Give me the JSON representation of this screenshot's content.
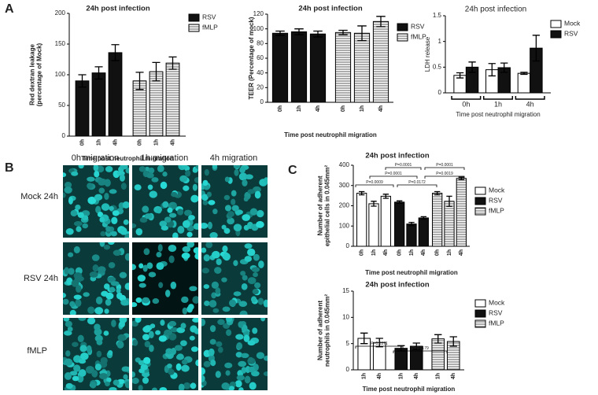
{
  "figure": {
    "panel_labels": [
      "A",
      "B",
      "C"
    ],
    "microscopy": {
      "columns": [
        "0h migration",
        "1h migration",
        "4h migration"
      ],
      "rows": [
        "Mock 24h",
        "RSV 24h",
        "fMLP"
      ]
    }
  },
  "chart_data": [
    {
      "type": "bar",
      "title": "24h post infection",
      "xlabel": "Time post neutrophil migration",
      "ylabel": [
        "Red dextran leakage",
        "(percentage of Mock)"
      ],
      "categories": [
        "0h",
        "1h",
        "4h",
        "0h",
        "1h",
        "4h"
      ],
      "series": [
        {
          "name": "RSV",
          "color": "#111111",
          "values": [
            90,
            103,
            136,
            null,
            null,
            null
          ],
          "errors": [
            10,
            10,
            13,
            null,
            null,
            null
          ]
        },
        {
          "name": "fMLP",
          "color": "#777777",
          "hatch": true,
          "values": [
            null,
            null,
            null,
            90,
            105,
            119
          ],
          "errors": [
            null,
            null,
            null,
            14,
            15,
            10
          ]
        }
      ],
      "ylim": [
        0,
        200
      ],
      "yticks": [
        0,
        50,
        100,
        150,
        200
      ]
    },
    {
      "type": "bar",
      "title": "24h post infection",
      "xlabel": "Time post neutrophil migration",
      "ylabel": [
        "TEER (Percentage of mock)"
      ],
      "categories": [
        "0h",
        "1h",
        "4h",
        "0h",
        "1h",
        "4h"
      ],
      "series": [
        {
          "name": "RSV",
          "color": "#111111",
          "values": [
            94,
            96,
            93,
            null,
            null,
            null
          ],
          "errors": [
            3,
            4,
            4,
            null,
            null,
            null
          ]
        },
        {
          "name": "fMLP",
          "color": "#777777",
          "hatch": true,
          "values": [
            null,
            null,
            null,
            95,
            94,
            110
          ],
          "errors": [
            null,
            null,
            null,
            3,
            10,
            7
          ]
        }
      ],
      "ylim": [
        0,
        120
      ],
      "yticks": [
        0,
        20,
        40,
        60,
        80,
        100,
        120
      ]
    },
    {
      "type": "bar",
      "title": "24h post infection",
      "xlabel": "Time post neutrophil migration",
      "ylabel": [
        "LDH release"
      ],
      "categories": [
        "0h",
        "1h",
        "4h"
      ],
      "series": [
        {
          "name": "Mock",
          "color": "#ffffff",
          "values": [
            0.34,
            0.45,
            0.38
          ],
          "errors": [
            0.05,
            0.12,
            0.02
          ]
        },
        {
          "name": "RSV",
          "color": "#111111",
          "values": [
            0.5,
            0.49,
            0.87
          ],
          "errors": [
            0.1,
            0.09,
            0.25
          ]
        }
      ],
      "ylim": [
        0,
        1.5
      ],
      "yticks": [
        0,
        0.5,
        1,
        1.5
      ]
    },
    {
      "type": "bar",
      "title": "24h post infection",
      "xlabel": "Time post neutrophil migration",
      "ylabel": [
        "Number of adherent",
        "epithelial cells in 0.045mm²"
      ],
      "categories": [
        "0h",
        "1h",
        "4h",
        "0h",
        "1h",
        "4h",
        "0h",
        "1h",
        "4h"
      ],
      "series": [
        {
          "name": "Mock",
          "color": "#ffffff",
          "values": [
            262,
            210,
            247,
            null,
            null,
            null,
            null,
            null,
            null
          ],
          "errors": [
            8,
            12,
            10,
            null,
            null,
            null,
            null,
            null,
            null
          ]
        },
        {
          "name": "RSV",
          "color": "#111111",
          "values": [
            null,
            null,
            null,
            218,
            110,
            140,
            null,
            null,
            null
          ],
          "errors": [
            null,
            null,
            null,
            6,
            8,
            6,
            null,
            null,
            null
          ]
        },
        {
          "name": "fMLP",
          "color": "#777777",
          "hatch": true,
          "values": [
            null,
            null,
            null,
            null,
            null,
            null,
            262,
            222,
            335
          ],
          "errors": [
            null,
            null,
            null,
            null,
            null,
            null,
            8,
            25,
            6
          ]
        }
      ],
      "annotations": [
        "P=0.0001",
        "P=0.0001",
        "P=0.0001",
        "P=0.0019",
        "P=0.0009",
        "P=0.0172"
      ],
      "ylim": [
        0,
        400
      ],
      "yticks": [
        0,
        100,
        200,
        300,
        400
      ]
    },
    {
      "type": "bar",
      "title": "24h post infection",
      "xlabel": "Time post neutrophil migration",
      "ylabel": [
        "Number of adherent",
        "neutrophils in  0.045mm²"
      ],
      "categories": [
        "1h",
        "4h",
        "1h",
        "4h",
        "1h",
        "4h"
      ],
      "series": [
        {
          "name": "Mock",
          "color": "#ffffff",
          "values": [
            6,
            5.2,
            null,
            null,
            null,
            null
          ],
          "errors": [
            1,
            0.8,
            null,
            null,
            null,
            null
          ]
        },
        {
          "name": "RSV",
          "color": "#111111",
          "values": [
            null,
            null,
            4.1,
            4.5,
            null,
            null
          ],
          "errors": [
            null,
            null,
            0.5,
            0.6,
            null,
            null
          ]
        },
        {
          "name": "fMLP",
          "color": "#777777",
          "hatch": true,
          "values": [
            null,
            null,
            null,
            null,
            5.9,
            5.4
          ],
          "errors": [
            null,
            null,
            null,
            null,
            0.8,
            0.9
          ]
        }
      ],
      "annotations": [
        "P=0.0371",
        "P=0.0179"
      ],
      "ylim": [
        0,
        15
      ],
      "yticks": [
        0,
        5,
        10,
        15
      ]
    }
  ]
}
